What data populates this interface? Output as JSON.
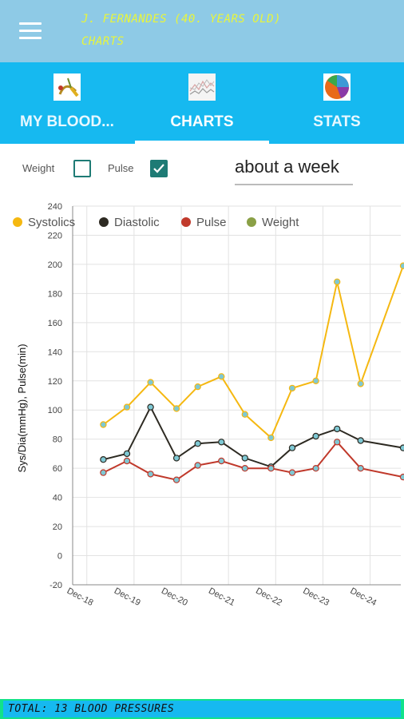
{
  "header": {
    "title_line1": "J. FERNANDES (40. YEARS OLD)",
    "title_line2": "CHARTS",
    "menu_icon": "hamburger-menu-icon"
  },
  "tabs": [
    {
      "label": "MY BLOOD...",
      "icon": "blood-pressure-icon",
      "active": false
    },
    {
      "label": "CHARTS",
      "icon": "line-chart-icon",
      "active": true
    },
    {
      "label": "STATS",
      "icon": "pie-chart-icon",
      "active": false
    }
  ],
  "controls": {
    "weight_label": "Weight",
    "weight_checked": false,
    "pulse_label": "Pulse",
    "pulse_checked": true,
    "range_value": "about a week"
  },
  "colors": {
    "systolic": "#f5b811",
    "diastolic": "#2d2a22",
    "pulse": "#c0392b",
    "weight": "#8aa046",
    "point_fill": "#7ec8d4"
  },
  "chart_data": {
    "type": "line",
    "ylabel": "Sys/Dia(mmHg), Pulse(min)",
    "xlabel": "",
    "ylim": [
      -20,
      240
    ],
    "y_ticks": [
      -20,
      0,
      20,
      40,
      60,
      80,
      100,
      120,
      140,
      160,
      180,
      200,
      220,
      240
    ],
    "x_ticks": [
      "Dec-18",
      "Dec-19",
      "Dec-20",
      "Dec-21",
      "Dec-22",
      "Dec-23",
      "Dec-24"
    ],
    "x_tick_pos": [
      1,
      2,
      3,
      4,
      5,
      6,
      7
    ],
    "xlim": [
      0.7,
      7.65
    ],
    "grid": true,
    "legend_position": "top-left",
    "legend": [
      "Systolics",
      "Diastolic",
      "Pulse",
      "Weight"
    ],
    "x": [
      1.35,
      1.85,
      2.35,
      2.9,
      3.35,
      3.85,
      4.35,
      4.9,
      5.35,
      5.85,
      6.3,
      6.8,
      7.7
    ],
    "series": [
      {
        "name": "Systolics",
        "values": [
          90,
          102,
          119,
          101,
          116,
          123,
          97,
          81,
          115,
          120,
          188,
          118,
          199
        ]
      },
      {
        "name": "Diastolic",
        "values": [
          66,
          70,
          102,
          67,
          77,
          78,
          67,
          61,
          74,
          82,
          87,
          79,
          74
        ]
      },
      {
        "name": "Pulse",
        "values": [
          57,
          65,
          56,
          52,
          62,
          65,
          60,
          60,
          57,
          60,
          78,
          60,
          54
        ]
      }
    ]
  },
  "footer": {
    "total_text": "TOTAL: 13 BLOOD PRESSURES"
  }
}
